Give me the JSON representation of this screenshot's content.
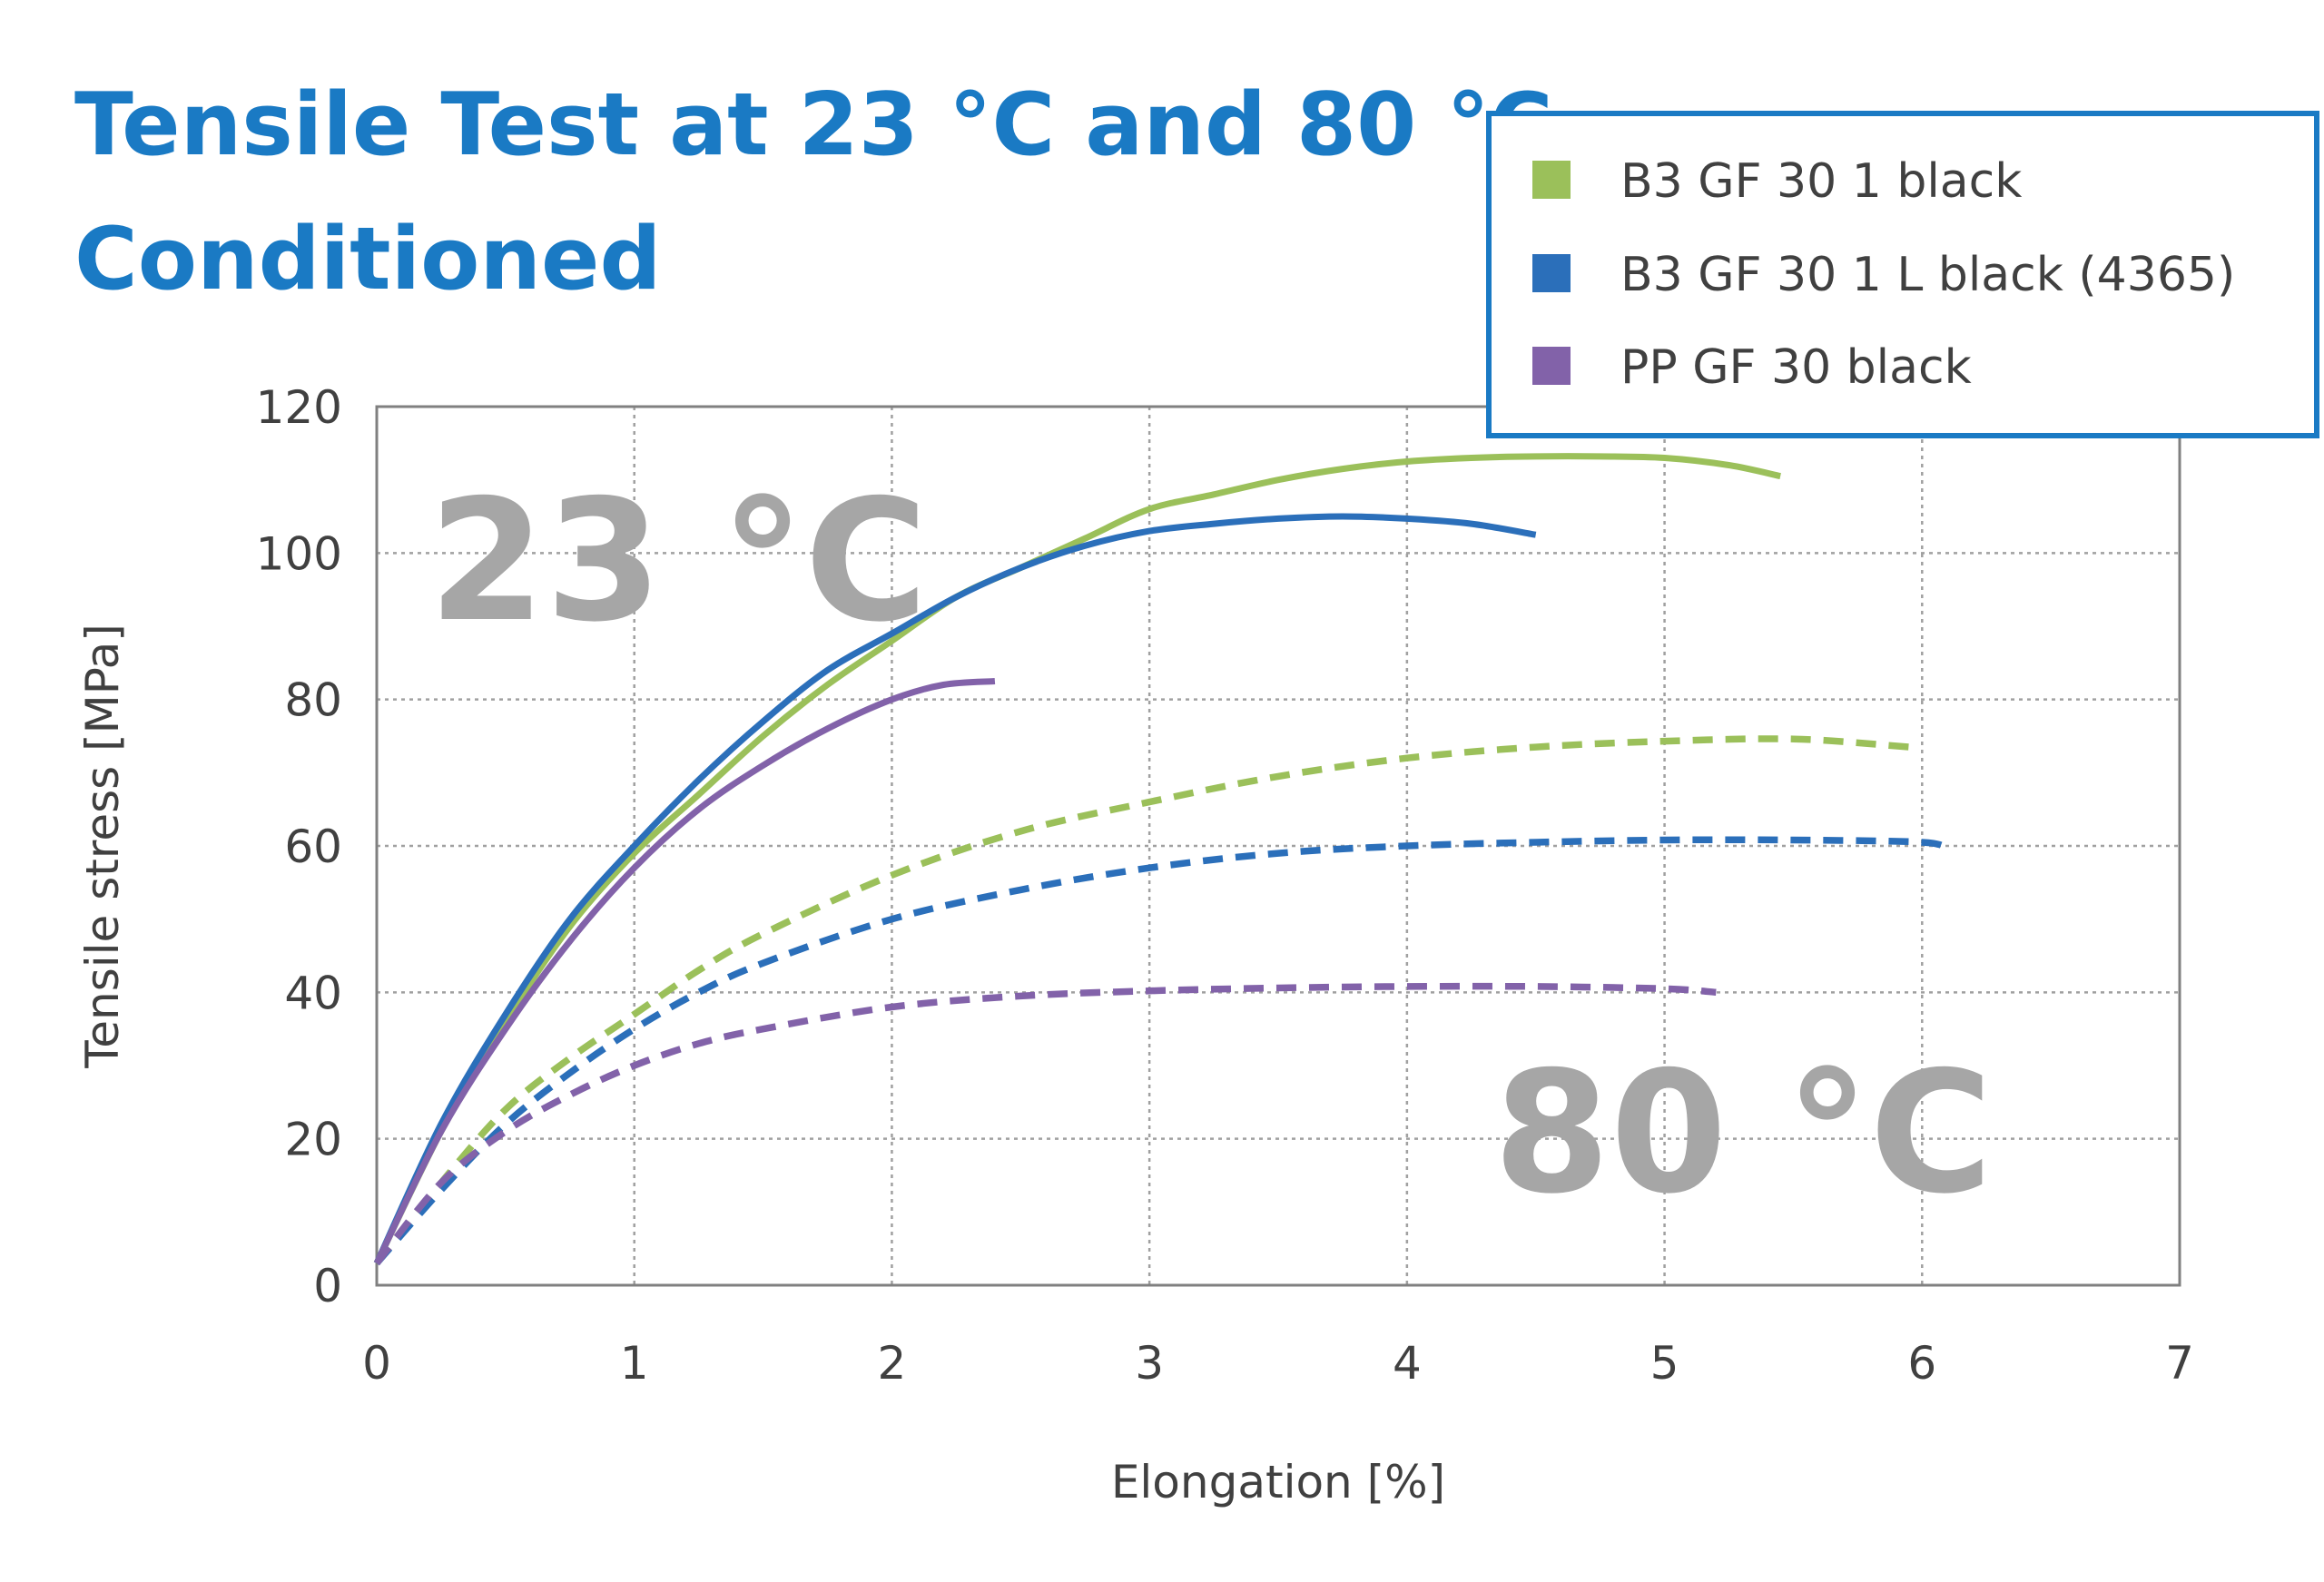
{
  "title_lines": [
    "Tensile Test at 23 °C and 80 °C –",
    "Conditioned"
  ],
  "colors": {
    "title": "#1a7ac4",
    "green": "#9bc05a",
    "blue": "#2b6fba",
    "purple": "#8262a9",
    "annotation": "#a6a6a6",
    "legend_border": "#1a7ac4"
  },
  "annotations": {
    "t23": "23 °C",
    "t80": "80 °C"
  },
  "legend": {
    "placement": "top-right",
    "items": [
      {
        "label": "B3 GF 30 1 black",
        "color": "#9bc05a"
      },
      {
        "label": "B3 GF 30 1 L black (4365)",
        "color": "#2b6fba"
      },
      {
        "label": "PP GF 30 black",
        "color": "#8262a9"
      }
    ]
  },
  "chart_data": {
    "type": "line",
    "title": "Tensile Test at 23 °C and 80 °C – Conditioned",
    "xlabel": "Elongation [%]",
    "ylabel": "Tensile stress [MPa]",
    "xlim": [
      0,
      7
    ],
    "ylim": [
      0,
      120
    ],
    "xticks": [
      0,
      1,
      2,
      3,
      4,
      5,
      6,
      7
    ],
    "yticks": [
      0,
      20,
      40,
      60,
      80,
      100,
      120
    ],
    "grid": true,
    "series": [
      {
        "name": "B3 GF 30 1 black",
        "temperature": "23 °C",
        "color": "#9bc05a",
        "style": "solid",
        "x": [
          0,
          0.25,
          0.5,
          0.75,
          1.0,
          1.25,
          1.5,
          1.75,
          2.0,
          2.25,
          2.5,
          2.75,
          3.0,
          3.25,
          3.5,
          3.75,
          4.0,
          4.25,
          4.5,
          4.75,
          5.0,
          5.25,
          5.45
        ],
        "y": [
          3,
          21,
          36,
          49,
          59,
          67,
          75,
          82,
          88,
          94,
          98,
          102,
          106,
          108,
          110,
          111.5,
          112.5,
          113,
          113.2,
          113.2,
          113,
          112,
          110.5
        ]
      },
      {
        "name": "B3 GF 30 1 L black (4365)",
        "temperature": "23 °C",
        "color": "#2b6fba",
        "style": "solid",
        "x": [
          0,
          0.25,
          0.5,
          0.75,
          1.0,
          1.25,
          1.5,
          1.75,
          2.0,
          2.25,
          2.5,
          2.75,
          3.0,
          3.25,
          3.5,
          3.75,
          4.0,
          4.25,
          4.5
        ],
        "y": [
          3,
          22,
          37,
          50,
          60,
          69,
          77,
          84,
          89,
          94,
          98,
          101,
          103,
          104,
          104.7,
          105,
          104.7,
          104,
          102.5
        ]
      },
      {
        "name": "PP GF 30 black",
        "temperature": "23 °C",
        "color": "#8262a9",
        "style": "solid",
        "x": [
          0,
          0.25,
          0.5,
          0.75,
          1.0,
          1.25,
          1.5,
          1.75,
          2.0,
          2.2,
          2.4
        ],
        "y": [
          3,
          21,
          35,
          47,
          57,
          65,
          71,
          76,
          80,
          82,
          82.5
        ]
      },
      {
        "name": "B3 GF 30 1 black",
        "temperature": "80 °C",
        "color": "#9bc05a",
        "style": "dotted",
        "x": [
          0,
          0.25,
          0.5,
          0.75,
          1.0,
          1.25,
          1.5,
          2.0,
          2.5,
          3.0,
          3.5,
          4.0,
          4.5,
          5.0,
          5.5,
          5.95
        ],
        "y": [
          3,
          14,
          24,
          31,
          37,
          43,
          48,
          56,
          62,
          66,
          69.5,
          72,
          73.5,
          74.3,
          74.6,
          73.5
        ]
      },
      {
        "name": "B3 GF 30 1 L black (4365)",
        "temperature": "80 °C",
        "color": "#2b6fba",
        "style": "dotted",
        "x": [
          0,
          0.25,
          0.5,
          0.75,
          1.0,
          1.25,
          1.5,
          2.0,
          2.5,
          3.0,
          3.5,
          4.0,
          4.5,
          5.0,
          5.5,
          6.0,
          6.1
        ],
        "y": [
          3,
          13,
          22,
          29,
          35,
          40,
          44,
          50,
          54,
          57,
          59,
          60,
          60.5,
          60.8,
          60.8,
          60.5,
          59.5
        ]
      },
      {
        "name": "PP GF 30 black",
        "temperature": "80 °C",
        "color": "#8262a9",
        "style": "dotted",
        "x": [
          0,
          0.25,
          0.5,
          0.75,
          1.0,
          1.25,
          1.5,
          2.0,
          2.5,
          3.0,
          3.5,
          4.0,
          4.5,
          5.0,
          5.2
        ],
        "y": [
          3,
          14,
          21,
          26,
          30,
          33,
          35,
          38,
          39.5,
          40.2,
          40.6,
          40.8,
          40.8,
          40.5,
          40
        ]
      }
    ]
  }
}
